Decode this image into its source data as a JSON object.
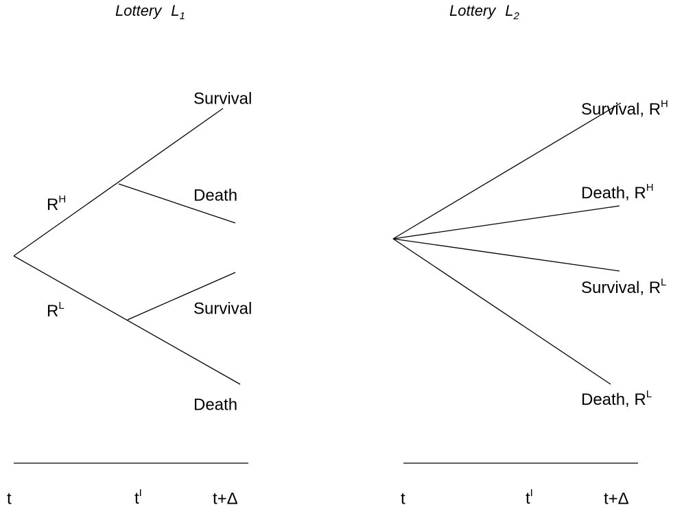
{
  "lotteries": [
    {
      "title": {
        "text": "Lottery",
        "symbol": "L",
        "subscript": "1"
      },
      "branches": [
        {
          "label": {
            "base": "R",
            "sup": "H"
          },
          "outcomes": [
            "Survival",
            "Death"
          ]
        },
        {
          "label": {
            "base": "R",
            "sup": "L"
          },
          "outcomes": [
            "Survival",
            "Death"
          ]
        }
      ],
      "timeline": {
        "start": "t",
        "mid": {
          "base": "t",
          "sup": "I"
        },
        "end": "t+Δ"
      }
    },
    {
      "title": {
        "text": "Lottery",
        "symbol": "L",
        "subscript": "2"
      },
      "outcomes": [
        {
          "base": "Survival, R",
          "sup": "H"
        },
        {
          "base": "Death, R",
          "sup": "H"
        },
        {
          "base": "Survival, R",
          "sup": "L"
        },
        {
          "base": "Death, R",
          "sup": "L"
        }
      ],
      "timeline": {
        "start": "t",
        "mid": {
          "base": "t",
          "sup": "I"
        },
        "end": "t+Δ"
      }
    }
  ]
}
